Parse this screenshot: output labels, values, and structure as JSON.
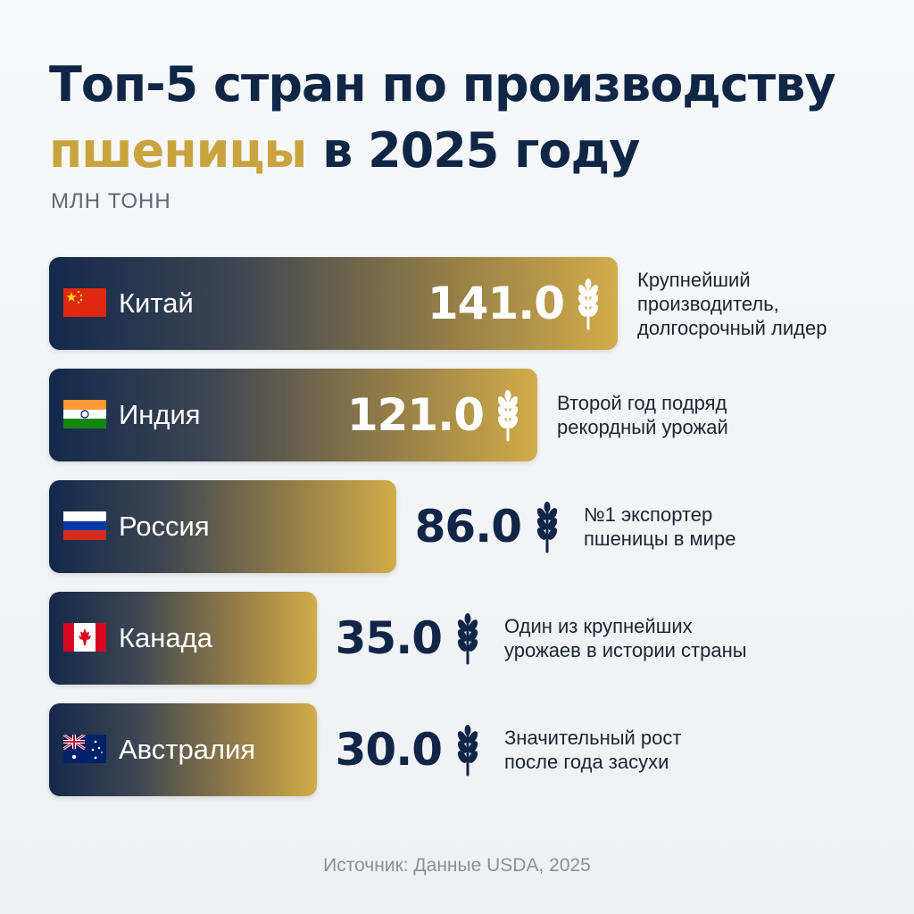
{
  "title": {
    "line1": "Топ-5 стран по производству",
    "highlight": "пшеницы",
    "line2_rest": " в 2025 году"
  },
  "unit_label": "МЛН ТОНН",
  "source": "Источник: Данные USDA, 2025",
  "colors": {
    "navy": "#13294b",
    "gold": "#d2ac49",
    "title_accent": "#c9a43e"
  },
  "chart_data": {
    "type": "bar",
    "orientation": "horizontal",
    "title": "Топ-5 стран по производству пшеницы в 2025 году",
    "unit": "МЛН ТОНН",
    "categories": [
      "Китай",
      "Индия",
      "Россия",
      "Канада",
      "Австралия"
    ],
    "values": [
      141.0,
      121.0,
      86.0,
      35.0,
      30.0
    ],
    "value_labels": [
      "141.0",
      "121.0",
      "86.0",
      "35.0",
      "30.0"
    ],
    "flags": [
      "china",
      "india",
      "russia",
      "canada",
      "australia"
    ],
    "notes": [
      "Крупнейший\nпроизводитель,\nдолгосрочный лидер",
      "Второй год подряд\nрекордный урожай",
      "№1 экспортер\nпшеницы в мире",
      "Один из крупнейших\nурожаев в истории страны",
      "Значительный рост\nпосле года засухи"
    ],
    "icon": "wheat-icon",
    "grid": false,
    "legend": "none"
  }
}
